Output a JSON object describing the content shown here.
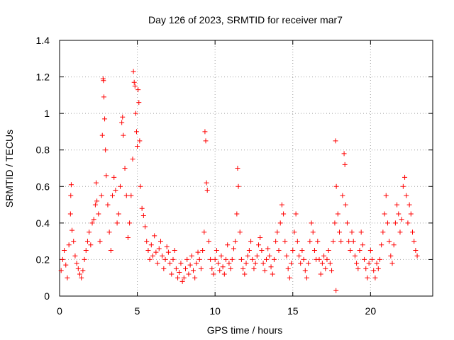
{
  "chart_data": {
    "type": "scatter",
    "title": "Day 126 of 2023, SRMTID for receiver mar7",
    "xlabel": "GPS time / hours",
    "ylabel": "SRMTID / TECUs",
    "xlim": [
      0,
      24
    ],
    "ylim": [
      0,
      1.4
    ],
    "xticks": [
      0,
      5,
      10,
      15,
      20
    ],
    "xtick_labels": [
      "0",
      "5",
      "10",
      "15",
      "20"
    ],
    "yticks": [
      0,
      0.2,
      0.4,
      0.6,
      0.8,
      1,
      1.2,
      1.4
    ],
    "ytick_labels": [
      "0",
      "0.2",
      "0.4",
      "0.6",
      "0.8",
      "1",
      "1.2",
      "1.4"
    ],
    "grid": true,
    "marker": "+",
    "series_color": "#ff0000",
    "series": [
      {
        "name": "SRMTID",
        "points": [
          [
            0.1,
            0.14
          ],
          [
            0.2,
            0.2
          ],
          [
            0.3,
            0.25
          ],
          [
            0.4,
            0.17
          ],
          [
            0.5,
            0.1
          ],
          [
            0.6,
            0.28
          ],
          [
            0.7,
            0.45
          ],
          [
            0.72,
            0.55
          ],
          [
            0.75,
            0.61
          ],
          [
            0.8,
            0.36
          ],
          [
            0.9,
            0.3
          ],
          [
            1.0,
            0.22
          ],
          [
            1.1,
            0.18
          ],
          [
            1.2,
            0.15
          ],
          [
            1.3,
            0.12
          ],
          [
            1.4,
            0.1
          ],
          [
            1.5,
            0.14
          ],
          [
            1.6,
            0.2
          ],
          [
            1.7,
            0.25
          ],
          [
            1.8,
            0.3
          ],
          [
            1.9,
            0.35
          ],
          [
            2.0,
            0.28
          ],
          [
            2.1,
            0.4
          ],
          [
            2.2,
            0.42
          ],
          [
            2.3,
            0.5
          ],
          [
            2.35,
            0.62
          ],
          [
            2.4,
            0.52
          ],
          [
            2.5,
            0.45
          ],
          [
            2.6,
            0.3
          ],
          [
            2.7,
            0.55
          ],
          [
            2.75,
            0.88
          ],
          [
            2.8,
            1.19
          ],
          [
            2.82,
            1.18
          ],
          [
            2.85,
            1.09
          ],
          [
            2.9,
            0.97
          ],
          [
            2.95,
            0.8
          ],
          [
            3.0,
            0.66
          ],
          [
            3.1,
            0.5
          ],
          [
            3.2,
            0.35
          ],
          [
            3.3,
            0.25
          ],
          [
            3.4,
            0.55
          ],
          [
            3.5,
            0.65
          ],
          [
            3.6,
            0.58
          ],
          [
            3.7,
            0.4
          ],
          [
            3.8,
            0.45
          ],
          [
            3.9,
            0.6
          ],
          [
            4.0,
            0.95
          ],
          [
            4.05,
            0.98
          ],
          [
            4.1,
            0.88
          ],
          [
            4.2,
            0.7
          ],
          [
            4.3,
            0.55
          ],
          [
            4.4,
            0.32
          ],
          [
            4.5,
            0.4
          ],
          [
            4.6,
            0.55
          ],
          [
            4.7,
            0.75
          ],
          [
            4.75,
            1.23
          ],
          [
            4.8,
            1.17
          ],
          [
            4.85,
            1.15
          ],
          [
            4.9,
            1.0
          ],
          [
            4.95,
            0.9
          ],
          [
            5.0,
            0.82
          ],
          [
            5.05,
            1.13
          ],
          [
            5.1,
            1.06
          ],
          [
            5.15,
            0.85
          ],
          [
            5.2,
            0.6
          ],
          [
            5.3,
            0.48
          ],
          [
            5.4,
            0.44
          ],
          [
            5.5,
            0.38
          ],
          [
            5.6,
            0.3
          ],
          [
            5.7,
            0.25
          ],
          [
            5.8,
            0.2
          ],
          [
            5.9,
            0.28
          ],
          [
            6.0,
            0.22
          ],
          [
            6.1,
            0.33
          ],
          [
            6.2,
            0.24
          ],
          [
            6.3,
            0.18
          ],
          [
            6.4,
            0.26
          ],
          [
            6.5,
            0.3
          ],
          [
            6.6,
            0.22
          ],
          [
            6.7,
            0.15
          ],
          [
            6.8,
            0.2
          ],
          [
            6.9,
            0.27
          ],
          [
            7.0,
            0.24
          ],
          [
            7.1,
            0.18
          ],
          [
            7.2,
            0.12
          ],
          [
            7.3,
            0.2
          ],
          [
            7.4,
            0.25
          ],
          [
            7.5,
            0.15
          ],
          [
            7.6,
            0.1
          ],
          [
            7.7,
            0.13
          ],
          [
            7.8,
            0.18
          ],
          [
            7.9,
            0.08
          ],
          [
            8.0,
            0.1
          ],
          [
            8.1,
            0.15
          ],
          [
            8.2,
            0.2
          ],
          [
            8.3,
            0.12
          ],
          [
            8.4,
            0.17
          ],
          [
            8.5,
            0.22
          ],
          [
            8.6,
            0.14
          ],
          [
            8.7,
            0.1
          ],
          [
            8.8,
            0.18
          ],
          [
            8.9,
            0.24
          ],
          [
            9.0,
            0.2
          ],
          [
            9.1,
            0.15
          ],
          [
            9.2,
            0.25
          ],
          [
            9.3,
            0.35
          ],
          [
            9.35,
            0.9
          ],
          [
            9.4,
            0.85
          ],
          [
            9.45,
            0.62
          ],
          [
            9.5,
            0.58
          ],
          [
            9.6,
            0.3
          ],
          [
            9.7,
            0.2
          ],
          [
            9.8,
            0.15
          ],
          [
            9.9,
            0.12
          ],
          [
            10.0,
            0.2
          ],
          [
            10.1,
            0.25
          ],
          [
            10.2,
            0.18
          ],
          [
            10.3,
            0.14
          ],
          [
            10.4,
            0.22
          ],
          [
            10.5,
            0.16
          ],
          [
            10.6,
            0.12
          ],
          [
            10.7,
            0.2
          ],
          [
            10.8,
            0.28
          ],
          [
            10.9,
            0.18
          ],
          [
            11.0,
            0.15
          ],
          [
            11.1,
            0.2
          ],
          [
            11.2,
            0.26
          ],
          [
            11.3,
            0.3
          ],
          [
            11.4,
            0.45
          ],
          [
            11.45,
            0.7
          ],
          [
            11.5,
            0.6
          ],
          [
            11.6,
            0.35
          ],
          [
            11.7,
            0.2
          ],
          [
            11.8,
            0.15
          ],
          [
            11.9,
            0.12
          ],
          [
            12.0,
            0.18
          ],
          [
            12.1,
            0.22
          ],
          [
            12.2,
            0.25
          ],
          [
            12.3,
            0.3
          ],
          [
            12.4,
            0.2
          ],
          [
            12.5,
            0.15
          ],
          [
            12.6,
            0.18
          ],
          [
            12.7,
            0.22
          ],
          [
            12.8,
            0.28
          ],
          [
            12.9,
            0.32
          ],
          [
            13.0,
            0.25
          ],
          [
            13.1,
            0.18
          ],
          [
            13.2,
            0.14
          ],
          [
            13.3,
            0.2
          ],
          [
            13.4,
            0.26
          ],
          [
            13.5,
            0.22
          ],
          [
            13.6,
            0.16
          ],
          [
            13.7,
            0.12
          ],
          [
            13.8,
            0.2
          ],
          [
            13.9,
            0.3
          ],
          [
            14.0,
            0.35
          ],
          [
            14.1,
            0.25
          ],
          [
            14.2,
            0.4
          ],
          [
            14.3,
            0.5
          ],
          [
            14.4,
            0.45
          ],
          [
            14.5,
            0.3
          ],
          [
            14.6,
            0.22
          ],
          [
            14.7,
            0.15
          ],
          [
            14.8,
            0.1
          ],
          [
            14.9,
            0.18
          ],
          [
            15.0,
            0.25
          ],
          [
            15.1,
            0.35
          ],
          [
            15.2,
            0.45
          ],
          [
            15.3,
            0.3
          ],
          [
            15.4,
            0.22
          ],
          [
            15.5,
            0.18
          ],
          [
            15.6,
            0.25
          ],
          [
            15.7,
            0.2
          ],
          [
            15.8,
            0.14
          ],
          [
            15.9,
            0.1
          ],
          [
            16.0,
            0.18
          ],
          [
            16.1,
            0.3
          ],
          [
            16.2,
            0.4
          ],
          [
            16.3,
            0.35
          ],
          [
            16.4,
            0.25
          ],
          [
            16.5,
            0.2
          ],
          [
            16.6,
            0.3
          ],
          [
            16.7,
            0.2
          ],
          [
            16.8,
            0.12
          ],
          [
            16.9,
            0.18
          ],
          [
            17.0,
            0.22
          ],
          [
            17.1,
            0.15
          ],
          [
            17.2,
            0.2
          ],
          [
            17.3,
            0.25
          ],
          [
            17.4,
            0.18
          ],
          [
            17.5,
            0.14
          ],
          [
            17.6,
            0.3
          ],
          [
            17.7,
            0.4
          ],
          [
            17.75,
            0.85
          ],
          [
            17.78,
            0.03
          ],
          [
            17.8,
            0.6
          ],
          [
            17.9,
            0.45
          ],
          [
            18.0,
            0.35
          ],
          [
            18.1,
            0.3
          ],
          [
            18.2,
            0.55
          ],
          [
            18.3,
            0.78
          ],
          [
            18.35,
            0.72
          ],
          [
            18.4,
            0.5
          ],
          [
            18.5,
            0.4
          ],
          [
            18.6,
            0.3
          ],
          [
            18.7,
            0.25
          ],
          [
            18.8,
            0.35
          ],
          [
            18.9,
            0.3
          ],
          [
            19.0,
            0.22
          ],
          [
            19.1,
            0.18
          ],
          [
            19.2,
            0.15
          ],
          [
            19.3,
            0.25
          ],
          [
            19.4,
            0.35
          ],
          [
            19.5,
            0.28
          ],
          [
            19.6,
            0.2
          ],
          [
            19.7,
            0.15
          ],
          [
            19.8,
            0.1
          ],
          [
            19.9,
            0.18
          ],
          [
            20.0,
            0.25
          ],
          [
            20.1,
            0.2
          ],
          [
            20.2,
            0.14
          ],
          [
            20.3,
            0.1
          ],
          [
            20.4,
            0.18
          ],
          [
            20.5,
            0.15
          ],
          [
            20.6,
            0.2
          ],
          [
            20.7,
            0.28
          ],
          [
            20.8,
            0.35
          ],
          [
            20.9,
            0.45
          ],
          [
            21.0,
            0.55
          ],
          [
            21.1,
            0.4
          ],
          [
            21.2,
            0.3
          ],
          [
            21.3,
            0.22
          ],
          [
            21.4,
            0.18
          ],
          [
            21.5,
            0.28
          ],
          [
            21.6,
            0.4
          ],
          [
            21.7,
            0.5
          ],
          [
            21.8,
            0.45
          ],
          [
            21.9,
            0.35
          ],
          [
            22.0,
            0.42
          ],
          [
            22.1,
            0.6
          ],
          [
            22.2,
            0.65
          ],
          [
            22.3,
            0.55
          ],
          [
            22.4,
            0.4
          ],
          [
            22.5,
            0.5
          ],
          [
            22.6,
            0.45
          ],
          [
            22.7,
            0.35
          ],
          [
            22.8,
            0.3
          ],
          [
            22.9,
            0.25
          ],
          [
            23.0,
            0.22
          ]
        ]
      }
    ]
  }
}
